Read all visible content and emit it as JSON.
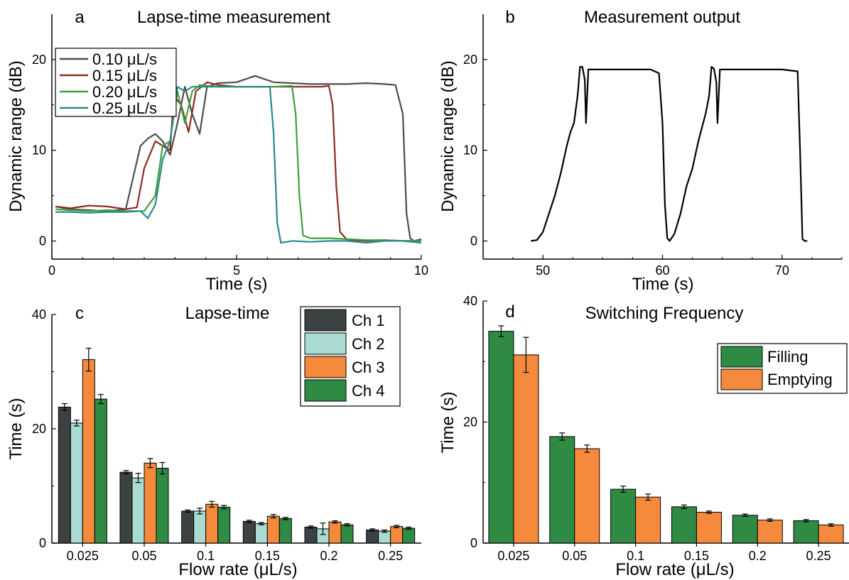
{
  "chart_data": [
    {
      "panel": "a",
      "type": "line",
      "title": "Lapse-time measurement",
      "xlabel": "Time (s)",
      "ylabel": "Dynamic range (dB)",
      "xlim": [
        0,
        10
      ],
      "ylim": [
        -2,
        25
      ],
      "xticks": [
        "0",
        "5",
        "10"
      ],
      "yticks": [
        "0",
        "10",
        "20"
      ],
      "legend_position": "top-left",
      "series": [
        {
          "name": "0.10 μL/s",
          "color": "#4d4d4d",
          "x": [
            0.1,
            0.5,
            1,
            1.5,
            2,
            2.2,
            2.4,
            2.6,
            2.8,
            3.0,
            3.2,
            3.4,
            3.6,
            3.8,
            4.0,
            4.2,
            4.5,
            5,
            5.5,
            6,
            6.5,
            7,
            7.5,
            8,
            8.5,
            9,
            9.3,
            9.5,
            9.6,
            9.7,
            9.8,
            10
          ],
          "y": [
            3.8,
            3.5,
            3.4,
            3.3,
            3.5,
            7,
            10.5,
            11.3,
            11.8,
            11,
            9.5,
            13,
            17,
            14,
            11.8,
            17,
            17.4,
            17.5,
            18.2,
            17.5,
            17.4,
            17.3,
            17.3,
            17.3,
            17.4,
            17.3,
            17.2,
            14,
            3,
            0.3,
            0,
            0.2
          ]
        },
        {
          "name": "0.15 μL/s",
          "color": "#8b2d1f",
          "x": [
            0.1,
            0.5,
            1,
            1.5,
            2,
            2.3,
            2.5,
            2.8,
            3.0,
            3.2,
            3.3,
            3.5,
            3.7,
            3.9,
            4.2,
            4.5,
            5,
            5.5,
            6,
            6.5,
            7,
            7.3,
            7.5,
            7.6,
            7.7,
            7.8,
            8,
            8.5,
            9,
            9.5,
            10
          ],
          "y": [
            3.8,
            3.6,
            3.9,
            3.8,
            3.5,
            3.7,
            8,
            11,
            10.5,
            10,
            16,
            15,
            12,
            16.5,
            17.5,
            17.2,
            17,
            17,
            17,
            17,
            17,
            17,
            17.1,
            15,
            6,
            1,
            0.1,
            0,
            0.1,
            0,
            0
          ]
        },
        {
          "name": "0.20 μL/s",
          "color": "#3f9f3f",
          "x": [
            0.1,
            0.5,
            1,
            1.5,
            2,
            2.5,
            2.8,
            3.0,
            3.2,
            3.4,
            3.6,
            3.8,
            4.0,
            4.5,
            5,
            5.5,
            6,
            6.5,
            6.6,
            6.7,
            6.8,
            7,
            7.5,
            8,
            8.5,
            9,
            9.5,
            10
          ],
          "y": [
            3.5,
            3.4,
            3.3,
            3.4,
            3.3,
            3.3,
            5,
            10.5,
            11,
            16.5,
            13,
            16.5,
            17.2,
            17,
            17,
            17,
            17,
            17.1,
            14,
            5,
            0.6,
            0.3,
            0.3,
            0.2,
            0.1,
            0.1,
            0,
            0
          ]
        },
        {
          "name": "0.25 μL/s",
          "color": "#2a8a8a",
          "x": [
            0.1,
            0.5,
            1,
            1.5,
            2,
            2.4,
            2.6,
            2.8,
            3.0,
            3.2,
            3.4,
            3.6,
            3.8,
            4.0,
            4.5,
            5,
            5.5,
            5.9,
            6.0,
            6.1,
            6.2,
            6.5,
            7,
            7.5,
            8,
            8.5,
            9,
            9.5,
            10
          ],
          "y": [
            3.2,
            3.2,
            3.1,
            3.2,
            3.2,
            3.3,
            2.5,
            4,
            9,
            11,
            17,
            16.5,
            17,
            17,
            17,
            17,
            17,
            17,
            12,
            2,
            -0.2,
            0,
            -0.1,
            0,
            0,
            -0.2,
            0,
            0,
            -0.2
          ]
        }
      ]
    },
    {
      "panel": "b",
      "type": "line",
      "title": "Measurement output",
      "xlabel": "Time (s)",
      "ylabel": "Dynamic range (dB)",
      "xlim": [
        45,
        75
      ],
      "ylim": [
        -2,
        25
      ],
      "xticks": [
        "50",
        "60",
        "70"
      ],
      "yticks": [
        "0",
        "10",
        "20"
      ],
      "series": [
        {
          "name": "",
          "color": "#000000",
          "x": [
            49,
            49.5,
            50,
            50.5,
            51,
            51.5,
            52,
            52.3,
            52.6,
            52.9,
            53.1,
            53.3,
            53.5,
            53.6,
            53.8,
            54.2,
            55,
            57,
            59,
            59.7,
            60,
            60.2,
            60.4,
            60.6,
            61,
            61.5,
            62,
            62.5,
            63,
            63.3,
            63.6,
            63.9,
            64.1,
            64.3,
            64.5,
            64.6,
            64.8,
            65.2,
            66,
            68,
            70,
            71.3,
            71.5,
            71.7,
            71.9,
            72.1
          ],
          "y": [
            0,
            0.1,
            1,
            3,
            5,
            7.5,
            10.5,
            12,
            13,
            16,
            19.2,
            19.2,
            17.8,
            13,
            18.9,
            18.9,
            18.9,
            18.9,
            18.9,
            18.5,
            13,
            4,
            0.3,
            0,
            0.8,
            3,
            6,
            8,
            11,
            12.5,
            14,
            16,
            19.2,
            19,
            17.5,
            13,
            18.9,
            18.9,
            18.9,
            18.9,
            18.9,
            18.7,
            10,
            0.2,
            0,
            0
          ]
        }
      ]
    },
    {
      "panel": "c",
      "type": "bar",
      "title": "Lapse-time",
      "xlabel": "Flow rate (μL/s)",
      "ylabel": "Time (s)",
      "ylim": [
        0,
        40
      ],
      "yticks": [
        "0",
        "20",
        "40"
      ],
      "categories": [
        "0.025",
        "0.05",
        "0.1",
        "0.15",
        "0.2",
        "0.25"
      ],
      "legend_position": "top-right",
      "series": [
        {
          "name": "Ch 1",
          "color": "#3c4241",
          "values": [
            23.8,
            12.4,
            5.6,
            3.8,
            2.8,
            2.3
          ],
          "errors": [
            0.6,
            0.3,
            0.2,
            0.2,
            0.2,
            0.2
          ]
        },
        {
          "name": "Ch 2",
          "color": "#a9dbd2",
          "values": [
            21.0,
            11.4,
            5.6,
            3.4,
            2.5,
            2.1
          ],
          "errors": [
            0.5,
            0.8,
            0.5,
            0.2,
            1.0,
            0.2
          ]
        },
        {
          "name": "Ch 3",
          "color": "#f58a3c",
          "values": [
            32.1,
            14.0,
            6.8,
            4.7,
            3.7,
            2.9
          ],
          "errors": [
            2.0,
            0.8,
            0.5,
            0.3,
            0.2,
            0.2
          ]
        },
        {
          "name": "Ch 4",
          "color": "#2f8a44",
          "values": [
            25.2,
            13.1,
            6.3,
            4.3,
            3.2,
            2.6
          ],
          "errors": [
            0.8,
            1.0,
            0.3,
            0.2,
            0.2,
            0.2
          ]
        }
      ]
    },
    {
      "panel": "d",
      "type": "bar",
      "title": "Switching Frequency",
      "xlabel": "Flow rate (μL/s)",
      "ylabel": "Time (s)",
      "ylim": [
        0,
        40
      ],
      "yticks": [
        "0",
        "20",
        "40"
      ],
      "categories": [
        "0.025",
        "0.05",
        "0.1",
        "0.15",
        "0.2",
        "0.25"
      ],
      "legend_position": "top-right",
      "series": [
        {
          "name": "Filling",
          "color": "#2f8a44",
          "values": [
            35.0,
            17.6,
            8.9,
            6.0,
            4.6,
            3.7
          ],
          "errors": [
            0.9,
            0.6,
            0.5,
            0.3,
            0.2,
            0.2
          ]
        },
        {
          "name": "Emptying",
          "color": "#f58a3c",
          "values": [
            31.1,
            15.6,
            7.6,
            5.1,
            3.8,
            3.0
          ],
          "errors": [
            2.9,
            0.6,
            0.5,
            0.2,
            0.2,
            0.2
          ]
        }
      ]
    }
  ]
}
